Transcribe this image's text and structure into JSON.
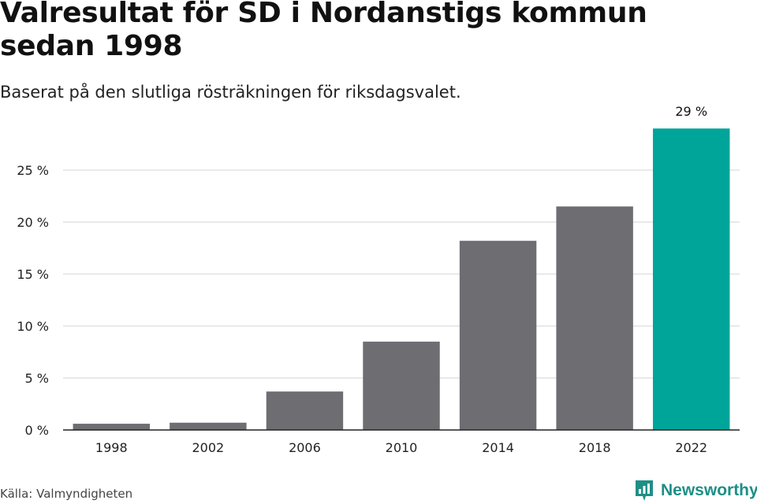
{
  "chart_data": {
    "type": "bar",
    "title": "Valresultat för SD i Nordanstigs kommun sedan 1998",
    "subtitle": "Baserat på den slutliga rösträkningen för riksdagsvalet.",
    "categories": [
      "1998",
      "2002",
      "2006",
      "2010",
      "2014",
      "2018",
      "2022"
    ],
    "values": [
      0.6,
      0.7,
      3.7,
      8.5,
      18.2,
      21.5,
      29.0
    ],
    "ylim": [
      0,
      30
    ],
    "yticks": [
      0,
      5,
      10,
      15,
      20,
      25
    ],
    "ytick_suffix": " %",
    "grid": true,
    "bar_color": "#6e6d72",
    "highlight_color": "#00a59a",
    "highlight_index": 6,
    "data_labels": [
      {
        "index": 6,
        "text": "29 %"
      }
    ]
  },
  "footer": {
    "source": "Källa: Valmyndigheten",
    "brand": "Newsworthy",
    "brand_color": "#1e8f87"
  }
}
